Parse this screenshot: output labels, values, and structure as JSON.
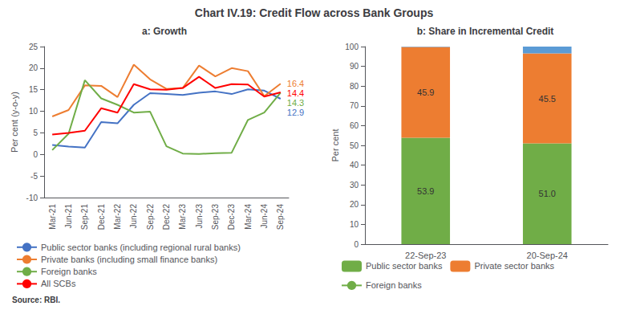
{
  "title": "Chart IV.19: Credit Flow across Bank Groups",
  "source": "Source: RBI.",
  "chart_data": [
    {
      "type": "line",
      "title": "a: Growth",
      "categories": [
        "Mar-21",
        "Jun-21",
        "Sep-21",
        "Dec-21",
        "Mar-22",
        "Jun-22",
        "Sep-22",
        "Dec-22",
        "Mar-23",
        "Jun-23",
        "Sep-23",
        "Dec-23",
        "Mar-24",
        "Jun-24",
        "Sep-24"
      ],
      "series": [
        {
          "name": "Public sector banks (including regional rural banks)",
          "color": "#4472C4",
          "values": [
            2.2,
            1.8,
            1.6,
            7.5,
            7.2,
            11.5,
            14.2,
            14.0,
            13.8,
            14.3,
            14.6,
            14.0,
            15.1,
            14.8,
            12.9
          ]
        },
        {
          "name": "Private banks (including small finance banks)",
          "color": "#ED7D31",
          "values": [
            8.8,
            10.3,
            16.0,
            15.9,
            13.3,
            20.8,
            17.4,
            15.2,
            15.4,
            20.6,
            18.1,
            20.0,
            19.3,
            13.5,
            16.4
          ]
        },
        {
          "name": "Foreign banks",
          "color": "#70AD47",
          "values": [
            1.0,
            4.8,
            17.2,
            13.0,
            11.5,
            9.7,
            9.9,
            1.9,
            0.2,
            0.1,
            0.3,
            0.4,
            8.0,
            9.7,
            14.3
          ]
        },
        {
          "name": "All SCBs",
          "color": "#FF0000",
          "values": [
            4.6,
            5.0,
            5.5,
            10.7,
            9.7,
            16.3,
            15.1,
            15.0,
            15.4,
            18.0,
            15.4,
            16.3,
            16.2,
            13.4,
            14.4
          ]
        }
      ],
      "ylabel": "Per cent (y-o-y)",
      "ylim": [
        -10,
        25
      ],
      "yticks": [
        -10,
        -5,
        0,
        5,
        10,
        15,
        20,
        25
      ],
      "grid": false,
      "legend": "bottom",
      "annotations": [
        {
          "text": "16.4",
          "series": "Private banks (including small finance banks)",
          "x": "Sep-24",
          "y": 16.4
        },
        {
          "text": "14.4",
          "series": "All SCBs",
          "x": "Sep-24",
          "y": 14.4
        },
        {
          "text": "14.3",
          "series": "Foreign banks",
          "x": "Sep-24",
          "y": 14.3
        },
        {
          "text": "12.9",
          "series": "Public sector banks (including regional rural banks)",
          "x": "Sep-24",
          "y": 12.9
        }
      ]
    },
    {
      "type": "bar",
      "title": "b: Share in Incremental Credit",
      "categories": [
        "22-Sep-23",
        "20-Sep-24"
      ],
      "stacked": true,
      "series": [
        {
          "name": "Public sector banks",
          "color": "#70AD47",
          "values": [
            53.9,
            51.0
          ],
          "value_labels": [
            "53.9",
            "51.0"
          ],
          "data_labels": true
        },
        {
          "name": "Private sector banks",
          "color": "#ED7D31",
          "values": [
            45.9,
            45.5
          ],
          "data_labels": true
        },
        {
          "name": "Foreign banks",
          "color": "#5B9BD5",
          "values": [
            0.2,
            3.5
          ],
          "data_labels": false
        }
      ],
      "ylabel": "Per cent",
      "ylim": [
        0,
        100
      ],
      "yticks": [
        0,
        10,
        20,
        30,
        40,
        50,
        60,
        70,
        80,
        90,
        100
      ],
      "grid": false,
      "legend": "bottom"
    }
  ]
}
